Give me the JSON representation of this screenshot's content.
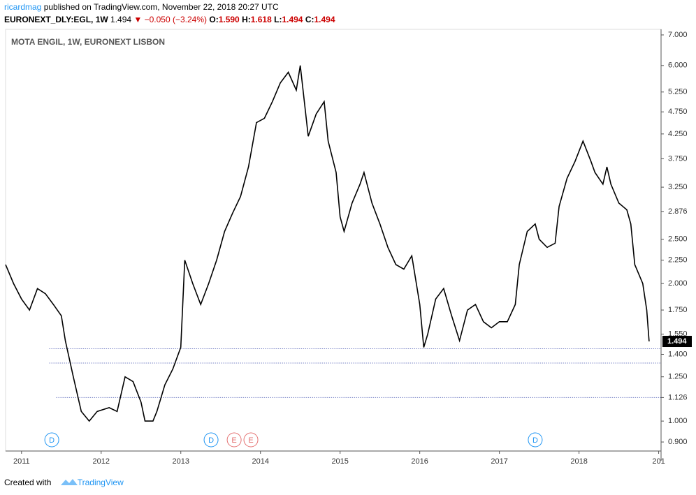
{
  "header": {
    "author": "ricardmag",
    "published": "published on TradingView.com, November 22, 2018 20:27 UTC",
    "symbol": "EURONEXT_DLY:EGL, 1W",
    "last": "1.494",
    "change": "▼ −0.050 (−3.24%)",
    "open_label": "O:",
    "open": "1.590",
    "high_label": "H:",
    "high": "1.618",
    "low_label": "L:",
    "low": "1.494",
    "close_label": "C:",
    "close": "1.494"
  },
  "chart_data": {
    "type": "line",
    "title": "MOTA ENGIL, 1W, EURONEXT LISBON",
    "color": "#000000",
    "log_scale": true,
    "x": [
      2010.8,
      2010.9,
      2011.0,
      2011.1,
      2011.2,
      2011.3,
      2011.4,
      2011.5,
      2011.55,
      2011.65,
      2011.75,
      2011.85,
      2011.95,
      2012.1,
      2012.2,
      2012.3,
      2012.4,
      2012.5,
      2012.55,
      2012.65,
      2012.7,
      2012.8,
      2012.9,
      2013.0,
      2013.05,
      2013.15,
      2013.25,
      2013.35,
      2013.45,
      2013.55,
      2013.65,
      2013.75,
      2013.85,
      2013.95,
      2014.05,
      2014.15,
      2014.25,
      2014.35,
      2014.45,
      2014.5,
      2014.6,
      2014.7,
      2014.8,
      2014.85,
      2014.95,
      2015.0,
      2015.05,
      2015.15,
      2015.25,
      2015.3,
      2015.4,
      2015.5,
      2015.6,
      2015.7,
      2015.8,
      2015.9,
      2016.0,
      2016.05,
      2016.1,
      2016.2,
      2016.3,
      2016.4,
      2016.5,
      2016.6,
      2016.7,
      2016.8,
      2016.9,
      2017.0,
      2017.1,
      2017.2,
      2017.25,
      2017.35,
      2017.45,
      2017.5,
      2017.6,
      2017.7,
      2017.75,
      2017.85,
      2017.95,
      2018.05,
      2018.15,
      2018.2,
      2018.3,
      2018.35,
      2018.4,
      2018.5,
      2018.6,
      2018.65,
      2018.7,
      2018.8,
      2018.85,
      2018.88
    ],
    "values": [
      2.2,
      2.0,
      1.85,
      1.75,
      1.95,
      1.9,
      1.8,
      1.7,
      1.5,
      1.25,
      1.05,
      1.0,
      1.05,
      1.07,
      1.05,
      1.25,
      1.22,
      1.1,
      1.0,
      1.0,
      1.05,
      1.2,
      1.3,
      1.45,
      2.25,
      2.0,
      1.8,
      2.0,
      2.25,
      2.6,
      2.85,
      3.1,
      3.6,
      4.5,
      4.6,
      5.0,
      5.5,
      5.8,
      5.3,
      6.0,
      4.2,
      4.7,
      5.0,
      4.1,
      3.5,
      2.8,
      2.6,
      3.0,
      3.3,
      3.5,
      3.0,
      2.7,
      2.4,
      2.2,
      2.15,
      2.3,
      1.8,
      1.45,
      1.55,
      1.85,
      1.95,
      1.7,
      1.5,
      1.75,
      1.8,
      1.65,
      1.6,
      1.65,
      1.65,
      1.8,
      2.2,
      2.6,
      2.7,
      2.5,
      2.4,
      2.45,
      2.95,
      3.4,
      3.7,
      4.1,
      3.7,
      3.5,
      3.3,
      3.6,
      3.3,
      3.0,
      2.9,
      2.7,
      2.2,
      2.0,
      1.75,
      1.494
    ],
    "xlim": [
      2010.8,
      2019.03
    ],
    "xticks": [
      2011,
      2012,
      2013,
      2014,
      2015,
      2016,
      2017,
      2018,
      {
        "value": 2019,
        "label": "201"
      }
    ],
    "ylim": [
      0.86,
      7.2
    ],
    "yticks": [
      {
        "value": 7,
        "label": "7.000"
      },
      {
        "value": 6,
        "label": "6.000"
      },
      {
        "value": 5.25,
        "label": "5.250"
      },
      {
        "value": 4.75,
        "label": "4.750"
      },
      {
        "value": 4.25,
        "label": "4.250"
      },
      {
        "value": 3.75,
        "label": "3.750"
      },
      {
        "value": 3.25,
        "label": "3.250"
      },
      2.876,
      {
        "value": 2.5,
        "label": "2.500"
      },
      {
        "value": 2.25,
        "label": "2.250"
      },
      {
        "value": 2,
        "label": "2.000"
      },
      {
        "value": 1.75,
        "label": "1.750"
      },
      {
        "value": 1.55,
        "label": "1.550"
      },
      {
        "value": 1.4,
        "label": "1.400"
      },
      {
        "value": 1.25,
        "label": "1.250"
      },
      1.126,
      {
        "value": 1,
        "label": "1.000"
      },
      {
        "value": 0.9,
        "label": "0.900"
      }
    ],
    "levels": [
      1.44,
      1.34,
      1.126
    ],
    "events": [
      {
        "x": 2011.38,
        "label": "D"
      },
      {
        "x": 2013.38,
        "label": "D"
      },
      {
        "x": 2013.67,
        "label": "E"
      },
      {
        "x": 2013.88,
        "label": "E"
      },
      {
        "x": 2017.45,
        "label": "D"
      }
    ]
  },
  "footer": {
    "created": "Created with",
    "brand": "TradingView"
  }
}
